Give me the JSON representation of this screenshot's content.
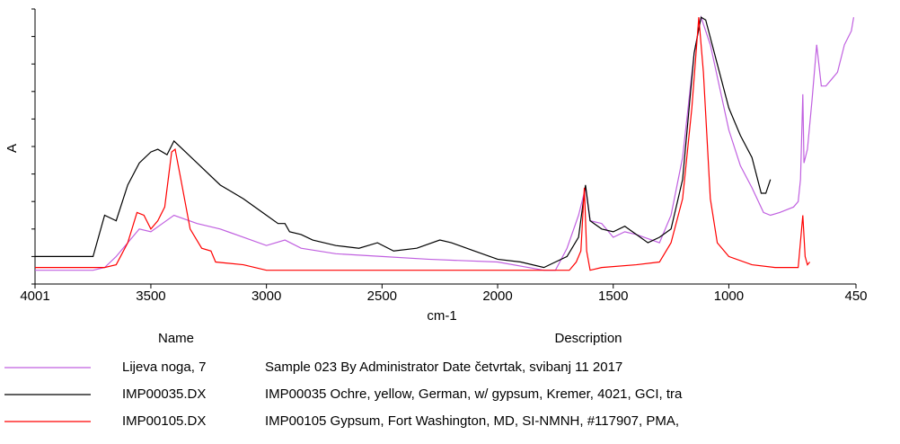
{
  "chart_data": {
    "type": "line",
    "xlabel": "cm-1",
    "ylabel": "A",
    "xlim": [
      4001,
      450
    ],
    "xticks": [
      4001,
      3500,
      3000,
      2500,
      2000,
      1500,
      1000,
      450
    ],
    "ylim": [
      0,
      1
    ],
    "yticks": [
      0,
      0.1,
      0.2,
      0.3,
      0.4,
      0.5,
      0.6,
      0.7,
      0.8,
      0.9,
      1
    ],
    "legend_headers": [
      "Name",
      "Description"
    ],
    "series": [
      {
        "name": "Lijeva noga, 7",
        "description": "Sample 023 By Administrator Date četvrtak, svibanj 11 2017",
        "color": "#c060e0",
        "x": [
          4001,
          3750,
          3700,
          3650,
          3600,
          3550,
          3500,
          3450,
          3400,
          3300,
          3200,
          3100,
          3000,
          2920,
          2850,
          2700,
          2500,
          2300,
          2000,
          1800,
          1750,
          1700,
          1650,
          1620,
          1600,
          1550,
          1500,
          1450,
          1400,
          1300,
          1250,
          1200,
          1150,
          1120,
          1080,
          1000,
          950,
          900,
          850,
          820,
          780,
          720,
          700,
          690,
          680,
          675,
          660,
          640,
          620,
          600,
          580,
          560,
          530,
          500,
          470,
          460
        ],
        "values": [
          0.05,
          0.05,
          0.06,
          0.1,
          0.15,
          0.2,
          0.19,
          0.22,
          0.25,
          0.22,
          0.2,
          0.17,
          0.14,
          0.16,
          0.13,
          0.11,
          0.1,
          0.09,
          0.08,
          0.05,
          0.05,
          0.13,
          0.25,
          0.35,
          0.23,
          0.22,
          0.17,
          0.19,
          0.18,
          0.15,
          0.25,
          0.46,
          0.84,
          0.97,
          0.87,
          0.56,
          0.43,
          0.35,
          0.26,
          0.25,
          0.26,
          0.28,
          0.3,
          0.38,
          0.69,
          0.44,
          0.49,
          0.67,
          0.87,
          0.72,
          0.72,
          0.74,
          0.77,
          0.87,
          0.92,
          0.97
        ]
      },
      {
        "name": "IMP00035.DX",
        "description": "IMP00035 Ochre, yellow, German, w/ gypsum, Kremer, 4021, GCI, tra",
        "color": "#000000",
        "x": [
          4001,
          3750,
          3700,
          3650,
          3600,
          3550,
          3500,
          3470,
          3430,
          3400,
          3350,
          3300,
          3200,
          3100,
          3000,
          2950,
          2920,
          2900,
          2850,
          2800,
          2700,
          2600,
          2520,
          2450,
          2350,
          2250,
          2200,
          2100,
          2000,
          1900,
          1800,
          1750,
          1700,
          1650,
          1620,
          1600,
          1550,
          1500,
          1450,
          1400,
          1350,
          1300,
          1250,
          1200,
          1150,
          1120,
          1100,
          1050,
          1000,
          950,
          900,
          860,
          840,
          820
        ],
        "values": [
          0.1,
          0.1,
          0.25,
          0.23,
          0.36,
          0.44,
          0.48,
          0.49,
          0.47,
          0.52,
          0.48,
          0.44,
          0.36,
          0.31,
          0.25,
          0.22,
          0.22,
          0.19,
          0.18,
          0.16,
          0.14,
          0.13,
          0.15,
          0.12,
          0.13,
          0.16,
          0.15,
          0.12,
          0.09,
          0.08,
          0.06,
          0.08,
          0.1,
          0.17,
          0.36,
          0.23,
          0.2,
          0.19,
          0.21,
          0.18,
          0.15,
          0.17,
          0.2,
          0.38,
          0.84,
          0.97,
          0.96,
          0.8,
          0.64,
          0.54,
          0.46,
          0.33,
          0.33,
          0.38
        ]
      },
      {
        "name": "IMP00105.DX",
        "description": "IMP00105 Gypsum, Fort Washington, MD, SI-NMNH, #117907, PMA,",
        "color": "#ff0000",
        "x": [
          4001,
          3700,
          3650,
          3600,
          3560,
          3530,
          3500,
          3470,
          3440,
          3410,
          3395,
          3370,
          3330,
          3280,
          3240,
          3220,
          3100,
          3000,
          2000,
          1750,
          1690,
          1660,
          1640,
          1625,
          1615,
          1600,
          1550,
          1400,
          1300,
          1250,
          1200,
          1160,
          1130,
          1110,
          1080,
          1050,
          1000,
          900,
          800,
          700,
          680,
          670,
          660,
          650
        ],
        "values": [
          0.06,
          0.06,
          0.07,
          0.15,
          0.26,
          0.25,
          0.2,
          0.23,
          0.28,
          0.48,
          0.49,
          0.38,
          0.2,
          0.13,
          0.12,
          0.08,
          0.07,
          0.05,
          0.05,
          0.05,
          0.05,
          0.08,
          0.12,
          0.35,
          0.12,
          0.05,
          0.06,
          0.07,
          0.08,
          0.15,
          0.31,
          0.64,
          0.97,
          0.77,
          0.31,
          0.15,
          0.1,
          0.07,
          0.06,
          0.06,
          0.25,
          0.1,
          0.07,
          0.08
        ]
      }
    ]
  }
}
